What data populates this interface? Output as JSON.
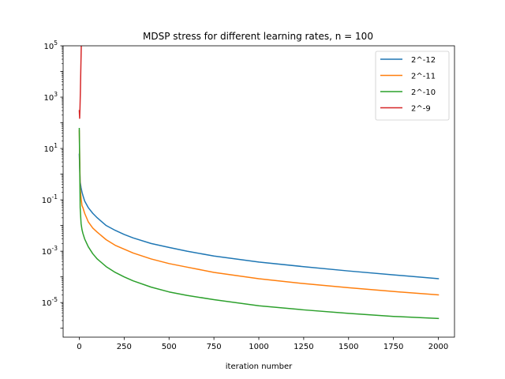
{
  "chart_data": {
    "type": "line",
    "title": "MDSP stress for different learning rates, n = 100",
    "xlabel": "iteration number",
    "ylabel": "",
    "yscale": "log",
    "xlim": [
      -90,
      2090
    ],
    "ylim": [
      4.5e-07,
      100000
    ],
    "xticks": [
      0,
      250,
      500,
      750,
      1000,
      1250,
      1500,
      1750,
      2000
    ],
    "yticks": [
      {
        "value": 1e-05,
        "label": "10^-5"
      },
      {
        "value": 0.001,
        "label": "10^-3"
      },
      {
        "value": 0.1,
        "label": "10^-1"
      },
      {
        "value": 10,
        "label": "10^1"
      },
      {
        "value": 1000,
        "label": "10^3"
      },
      {
        "value": 100000,
        "label": "10^5"
      }
    ],
    "grid": false,
    "legend_position": "top-right",
    "series": [
      {
        "name": "2^-12",
        "color": "#1f77b4",
        "x": [
          0,
          5,
          10,
          15,
          20,
          30,
          50,
          75,
          100,
          150,
          200,
          250,
          300,
          400,
          500,
          600,
          750,
          1000,
          1250,
          1500,
          1750,
          2000
        ],
        "y": [
          6,
          0.5,
          0.3,
          0.2,
          0.15,
          0.09,
          0.05,
          0.03,
          0.02,
          0.01,
          0.0065,
          0.0045,
          0.0033,
          0.002,
          0.0014,
          0.001,
          0.00065,
          0.00038,
          0.00025,
          0.00017,
          0.00012,
          8.5e-05
        ]
      },
      {
        "name": "2^-11",
        "color": "#ff7f0e",
        "x": [
          0,
          5,
          10,
          15,
          20,
          30,
          50,
          75,
          100,
          150,
          200,
          250,
          300,
          400,
          500,
          600,
          750,
          1000,
          1250,
          1500,
          1750,
          2000
        ],
        "y": [
          50,
          0.3,
          0.12,
          0.06,
          0.05,
          0.03,
          0.014,
          0.008,
          0.0055,
          0.0028,
          0.0017,
          0.0012,
          0.00085,
          0.0005,
          0.00033,
          0.00024,
          0.00015,
          8.5e-05,
          5.5e-05,
          3.8e-05,
          2.7e-05,
          2e-05
        ]
      },
      {
        "name": "2^-10",
        "color": "#2ca02c",
        "x": [
          0,
          5,
          10,
          15,
          20,
          30,
          50,
          75,
          100,
          150,
          200,
          250,
          300,
          400,
          500,
          600,
          750,
          1000,
          1250,
          1500,
          1750,
          2000
        ],
        "y": [
          60,
          0.05,
          0.012,
          0.007,
          0.005,
          0.003,
          0.0015,
          0.0008,
          0.0005,
          0.00025,
          0.00015,
          0.0001,
          7e-05,
          4e-05,
          2.6e-05,
          1.9e-05,
          1.3e-05,
          7.5e-06,
          5.2e-06,
          3.8e-06,
          2.9e-06,
          2.4e-06
        ]
      },
      {
        "name": "2^-9",
        "color": "#d62728",
        "x": [
          0,
          2,
          4,
          6,
          8,
          10,
          12
        ],
        "y": [
          300,
          150,
          400,
          1500,
          8000,
          40000,
          200000
        ]
      }
    ]
  }
}
